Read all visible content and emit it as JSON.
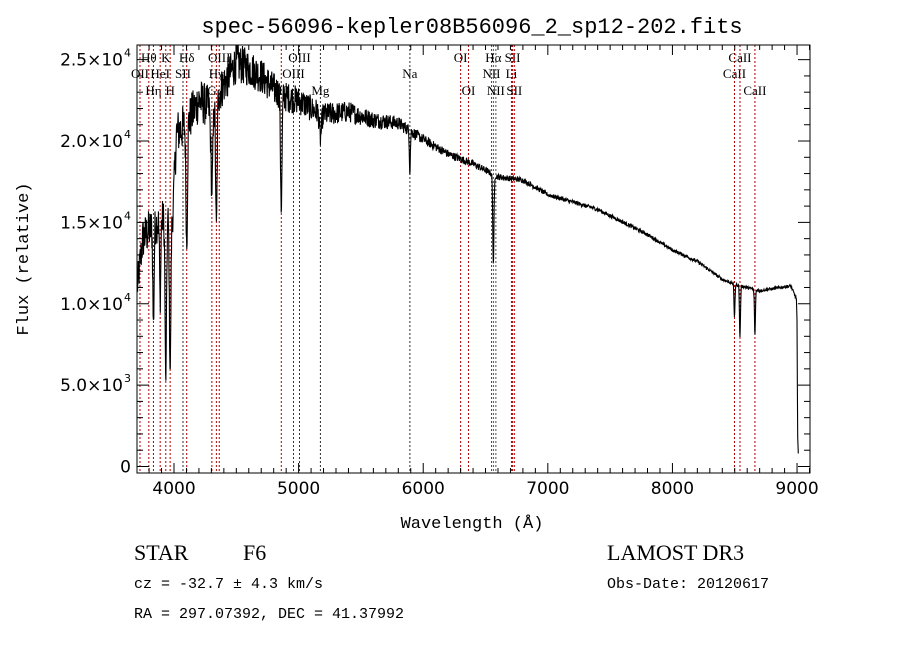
{
  "chart_data": {
    "type": "line",
    "title": "spec-56096-kepler08B56096_2_sp12-202.fits",
    "xlabel": "Wavelength (Å)",
    "ylabel": "Flux (relative)",
    "xlim": [
      3703,
      9104
    ],
    "ylim": [
      -400,
      25900
    ],
    "grid": false,
    "x_ticks": [
      {
        "value": 4000,
        "label": "4000"
      },
      {
        "value": 5000,
        "label": "5000"
      },
      {
        "value": 6000,
        "label": "6000"
      },
      {
        "value": 7000,
        "label": "7000"
      },
      {
        "value": 8000,
        "label": "8000"
      },
      {
        "value": 9000,
        "label": "9000"
      }
    ],
    "y_ticks": [
      {
        "value": 0,
        "mant": "0",
        "exp": ""
      },
      {
        "value": 5000,
        "mant": "5.0×10",
        "exp": "3"
      },
      {
        "value": 10000,
        "mant": "1.0×10",
        "exp": "4"
      },
      {
        "value": 15000,
        "mant": "1.5×10",
        "exp": "4"
      },
      {
        "value": 20000,
        "mant": "2.0×10",
        "exp": "4"
      },
      {
        "value": 25000,
        "mant": "2.5×10",
        "exp": "4"
      }
    ],
    "continuum": [
      [
        3705,
        11000
      ],
      [
        3750,
        14000
      ],
      [
        3800,
        14500
      ],
      [
        3900,
        15200
      ],
      [
        3990,
        15500
      ],
      [
        4020,
        20500
      ],
      [
        4100,
        21000
      ],
      [
        4200,
        22500
      ],
      [
        4300,
        22000
      ],
      [
        4400,
        23500
      ],
      [
        4500,
        24800
      ],
      [
        4600,
        24500
      ],
      [
        4700,
        24000
      ],
      [
        4800,
        23200
      ],
      [
        4900,
        22700
      ],
      [
        5000,
        22500
      ],
      [
        5100,
        22000
      ],
      [
        5200,
        21600
      ],
      [
        5400,
        21800
      ],
      [
        5600,
        21300
      ],
      [
        5800,
        21100
      ],
      [
        6000,
        20100
      ],
      [
        6200,
        19200
      ],
      [
        6400,
        18600
      ],
      [
        6600,
        17800
      ],
      [
        6800,
        17600
      ],
      [
        7000,
        16700
      ],
      [
        7400,
        15800
      ],
      [
        7800,
        14250
      ],
      [
        8000,
        13300
      ],
      [
        8200,
        12600
      ],
      [
        8400,
        11500
      ],
      [
        8500,
        11200
      ],
      [
        8700,
        10800
      ],
      [
        8950,
        11100
      ],
      [
        8995,
        10300
      ],
      [
        9000,
        9000
      ],
      [
        9004,
        2000
      ],
      [
        9010,
        800
      ]
    ],
    "absorption": [
      [
        3835,
        6000,
        5
      ],
      [
        3889,
        5000,
        5
      ],
      [
        3934,
        10000,
        6
      ],
      [
        3969,
        9500,
        6
      ],
      [
        4102,
        7500,
        6
      ],
      [
        4304,
        5000,
        8
      ],
      [
        4340,
        8000,
        6
      ],
      [
        4861,
        7000,
        6
      ],
      [
        5175,
        1500,
        8
      ],
      [
        5893,
        2500,
        4
      ],
      [
        6563,
        5500,
        5
      ],
      [
        8498,
        2000,
        4
      ],
      [
        8542,
        3200,
        4
      ],
      [
        8662,
        2800,
        4
      ]
    ],
    "noise_fraction": [
      [
        3700,
        0.1
      ],
      [
        4000,
        0.07
      ],
      [
        4500,
        0.05
      ],
      [
        5200,
        0.035
      ],
      [
        6000,
        0.015
      ],
      [
        7000,
        0.008
      ],
      [
        9000,
        0.008
      ]
    ],
    "lines": [
      {
        "label": "OII",
        "w": 3727,
        "row": 2,
        "color": "#b00000"
      },
      {
        "label": "Hθ",
        "w": 3798,
        "row": 1,
        "color": "#b00000"
      },
      {
        "label": "Hη",
        "w": 3835,
        "row": 3,
        "color": "#b00000"
      },
      {
        "label": "HeI",
        "w": 3889,
        "row": 2,
        "color": "#b00000"
      },
      {
        "label": "K",
        "w": 3934,
        "row": 1,
        "color": "#b00000"
      },
      {
        "label": "H",
        "w": 3969,
        "row": 3,
        "color": "#b00000"
      },
      {
        "label": "SII",
        "w": 4072,
        "row": 2,
        "color": "#303030"
      },
      {
        "label": "Hδ",
        "w": 4102,
        "row": 1,
        "color": "#b00000"
      },
      {
        "label": "G",
        "w": 4304,
        "row": 3,
        "color": "#b00000"
      },
      {
        "label": "Hγ",
        "w": 4340,
        "row": 2,
        "color": "#b00000"
      },
      {
        "label": "OIII",
        "w": 4363,
        "row": 1,
        "color": "#b00000"
      },
      {
        "label": "Hβ",
        "w": 4861,
        "row": 3,
        "color": "#b00000"
      },
      {
        "label": "OIII",
        "w": 4959,
        "row": 2,
        "color": "#b00000"
      },
      {
        "label": "OIII",
        "w": 5007,
        "row": 1,
        "color": "#b00000"
      },
      {
        "label": "Mg",
        "w": 5175,
        "row": 3,
        "color": "#303030"
      },
      {
        "label": "Na",
        "w": 5893,
        "row": 2,
        "color": "#303030"
      },
      {
        "label": "OI",
        "w": 6300,
        "row": 1,
        "color": "#b00000"
      },
      {
        "label": "OI",
        "w": 6363,
        "row": 3,
        "color": "#b00000"
      },
      {
        "label": "NII",
        "w": 6548,
        "row": 2,
        "color": "#505050"
      },
      {
        "label": "Hα",
        "w": 6563,
        "row": 1,
        "color": "#505050"
      },
      {
        "label": "NII",
        "w": 6583,
        "row": 3,
        "color": "#505050"
      },
      {
        "label": "Li",
        "w": 6708,
        "row": 2,
        "color": "#b00000"
      },
      {
        "label": "SII",
        "w": 6717,
        "row": 1,
        "color": "#b00000"
      },
      {
        "label": "SII",
        "w": 6731,
        "row": 3,
        "color": "#b00000"
      },
      {
        "label": "CaII",
        "w": 8498,
        "row": 2,
        "color": "#b00000"
      },
      {
        "label": "CaII",
        "w": 8542,
        "row": 1,
        "color": "#b00000"
      },
      {
        "label": "CaII",
        "w": 8662,
        "row": 3,
        "color": "#b00000"
      }
    ]
  },
  "info": {
    "class": "STAR",
    "subclass": "F6",
    "cz": "cz = -32.7 ± 4.3 km/s",
    "radec": "RA = 297.07392, DEC =  41.37992",
    "survey": "LAMOST DR3",
    "obs_date": "Obs-Date: 20120617"
  }
}
